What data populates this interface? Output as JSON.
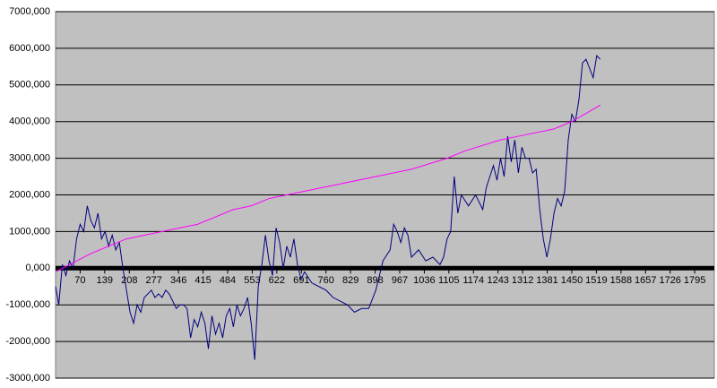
{
  "chart_data": {
    "type": "line",
    "xlim": [
      1,
      1850
    ],
    "xticks": [
      70,
      139,
      208,
      277,
      346,
      415,
      484,
      553,
      622,
      691,
      760,
      829,
      898,
      967,
      1036,
      1105,
      1174,
      1243,
      1312,
      1381,
      1450,
      1519,
      1588,
      1657,
      1726,
      1795
    ],
    "ylim": [
      -3000000,
      7000000
    ],
    "yticks": [
      {
        "value": -3000000,
        "label": "-3000,000"
      },
      {
        "value": -2000000,
        "label": "-2000,000"
      },
      {
        "value": -1000000,
        "label": "-1000,000"
      },
      {
        "value": 0,
        "label": "0,000"
      },
      {
        "value": 1000000,
        "label": "1000,000"
      },
      {
        "value": 2000000,
        "label": "2000,000"
      },
      {
        "value": 3000000,
        "label": "3000,000"
      },
      {
        "value": 4000000,
        "label": "4000,000"
      },
      {
        "value": 5000000,
        "label": "5000,000"
      },
      {
        "value": 6000000,
        "label": "6000,000"
      },
      {
        "value": 7000000,
        "label": "7000,000"
      }
    ],
    "grid": true,
    "series": [
      {
        "color": "#000080",
        "x": [
          1,
          10,
          20,
          30,
          40,
          50,
          60,
          70,
          80,
          90,
          100,
          110,
          120,
          130,
          140,
          150,
          160,
          170,
          180,
          190,
          200,
          210,
          220,
          230,
          240,
          250,
          260,
          270,
          280,
          290,
          300,
          310,
          320,
          330,
          340,
          350,
          360,
          370,
          380,
          390,
          400,
          410,
          420,
          430,
          440,
          450,
          460,
          470,
          480,
          490,
          500,
          510,
          520,
          530,
          540,
          550,
          560,
          570,
          580,
          590,
          600,
          610,
          620,
          630,
          640,
          650,
          660,
          670,
          680,
          690,
          700,
          720,
          740,
          760,
          780,
          800,
          820,
          840,
          860,
          880,
          900,
          910,
          920,
          940,
          950,
          960,
          970,
          980,
          990,
          1000,
          1020,
          1040,
          1060,
          1080,
          1090,
          1100,
          1110,
          1120,
          1130,
          1140,
          1160,
          1180,
          1200,
          1210,
          1230,
          1240,
          1250,
          1260,
          1270,
          1280,
          1290,
          1300,
          1310,
          1320,
          1330,
          1340,
          1350,
          1360,
          1370,
          1380,
          1390,
          1400,
          1410,
          1420,
          1430,
          1440,
          1450,
          1460,
          1470,
          1480,
          1490,
          1510,
          1520,
          1530
        ],
        "values": [
          -500000,
          -1000000,
          100000,
          -200000,
          200000,
          0,
          800000,
          1200000,
          1000000,
          1700000,
          1300000,
          1100000,
          1500000,
          800000,
          1000000,
          600000,
          900000,
          500000,
          700000,
          0,
          -600000,
          -1200000,
          -1500000,
          -1000000,
          -1200000,
          -800000,
          -700000,
          -600000,
          -800000,
          -700000,
          -800000,
          -600000,
          -700000,
          -900000,
          -1100000,
          -1000000,
          -1000000,
          -1100000,
          -1900000,
          -1400000,
          -1600000,
          -1200000,
          -1500000,
          -2200000,
          -1300000,
          -1800000,
          -1500000,
          -1900000,
          -1300000,
          -1100000,
          -1600000,
          -1000000,
          -1300000,
          -1100000,
          -800000,
          -1500000,
          -2500000,
          -500000,
          100000,
          900000,
          200000,
          -200000,
          1100000,
          700000,
          0,
          600000,
          300000,
          800000,
          100000,
          -300000,
          -100000,
          -400000,
          -500000,
          -600000,
          -800000,
          -900000,
          -1000000,
          -1200000,
          -1100000,
          -1100000,
          -600000,
          -200000,
          200000,
          500000,
          1200000,
          1000000,
          700000,
          1100000,
          900000,
          300000,
          500000,
          200000,
          300000,
          100000,
          300000,
          800000,
          1000000,
          2500000,
          1500000,
          2000000,
          1700000,
          2000000,
          1600000,
          2200000,
          2800000,
          2400000,
          3000000,
          2500000,
          3600000,
          2900000,
          3500000,
          2600000,
          3300000,
          3000000,
          3000000,
          2600000,
          2700000,
          1600000,
          800000,
          300000,
          800000,
          1500000,
          1900000,
          1700000,
          2100000,
          3500000,
          4200000,
          4000000,
          4600000,
          5600000,
          5700000,
          5200000,
          5800000,
          5700000
        ]
      },
      {
        "color": "#ff00ff",
        "x": [
          1,
          100,
          200,
          300,
          400,
          500,
          550,
          600,
          650,
          700,
          800,
          900,
          1000,
          1100,
          1150,
          1250,
          1300,
          1400,
          1450,
          1530
        ],
        "values": [
          -100000,
          400000,
          800000,
          1000000,
          1200000,
          1600000,
          1700000,
          1900000,
          2000000,
          2100000,
          2300000,
          2500000,
          2700000,
          3000000,
          3200000,
          3500000,
          3600000,
          3800000,
          4000000,
          4450000
        ]
      }
    ]
  }
}
